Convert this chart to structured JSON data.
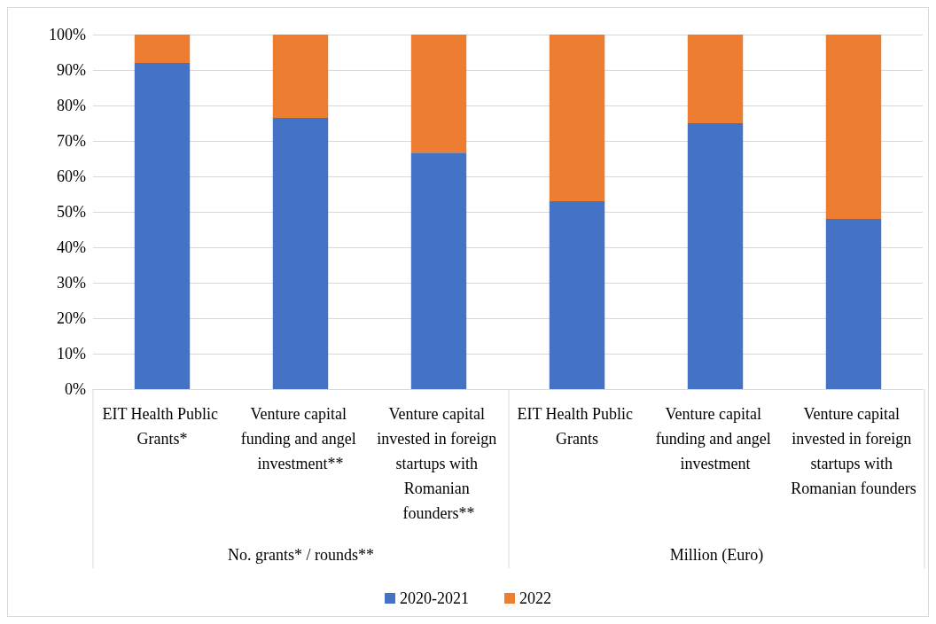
{
  "chart_data": {
    "type": "bar",
    "stacked": true,
    "categories": [
      "EIT Health Public Grants*",
      "Venture capital funding and angel investment**",
      "Venture capital invested in foreign startups with Romanian founders**",
      "EIT Health Public Grants",
      "Venture capital funding and angel investment",
      "Venture capital invested in foreign startups with Romanian founders"
    ],
    "series": [
      {
        "name": "2020-2021",
        "color": "#4472c4",
        "values": [
          92,
          76.5,
          66.7,
          53,
          75,
          48
        ]
      },
      {
        "name": "2022",
        "color": "#ed7d31",
        "values": [
          8,
          23.5,
          33.3,
          47,
          25,
          52
        ]
      }
    ],
    "ylim": [
      0,
      100
    ],
    "yticks": [
      {
        "value": 0,
        "label": "0%"
      },
      {
        "value": 10,
        "label": "10%"
      },
      {
        "value": 20,
        "label": "20%"
      },
      {
        "value": 30,
        "label": "30%"
      },
      {
        "value": 40,
        "label": "40%"
      },
      {
        "value": 50,
        "label": "50%"
      },
      {
        "value": 60,
        "label": "60%"
      },
      {
        "value": 70,
        "label": "70%"
      },
      {
        "value": 80,
        "label": "80%"
      },
      {
        "value": 90,
        "label": "90%"
      },
      {
        "value": 100,
        "label": "100%"
      }
    ],
    "grid": "y",
    "legend": "bottom",
    "annotations": [
      "No. grants* / rounds**",
      "Million (Euro)"
    ]
  }
}
